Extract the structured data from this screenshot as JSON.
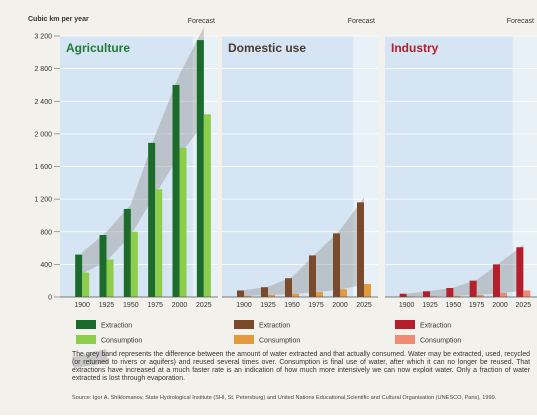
{
  "chart_data": [
    {
      "type": "bar",
      "title": "Agriculture",
      "title_color": "#1f7a34",
      "forecast_label": "Forecast",
      "categories": [
        "1900",
        "1925",
        "1950",
        "1975",
        "2000",
        "2025"
      ],
      "series": [
        {
          "name": "Extraction",
          "color": "#1b6b2a",
          "values": [
            520,
            760,
            1080,
            1890,
            2600,
            3150
          ]
        },
        {
          "name": "Consumption",
          "color": "#8ccd4a",
          "values": [
            300,
            460,
            800,
            1320,
            1830,
            2240
          ]
        }
      ],
      "ylim": [
        0,
        3200
      ]
    },
    {
      "type": "bar",
      "title": "Domestic use",
      "title_color": "#4a3a30",
      "forecast_label": "Forecast",
      "categories": [
        "1900",
        "1925",
        "1950",
        "1975",
        "2000",
        "2025"
      ],
      "series": [
        {
          "name": "Extraction",
          "color": "#7a4a2a",
          "values": [
            80,
            120,
            230,
            510,
            780,
            1160
          ]
        },
        {
          "name": "Consumption",
          "color": "#e39a3c",
          "values": [
            15,
            25,
            40,
            60,
            95,
            160
          ]
        }
      ],
      "ylim": [
        0,
        3200
      ]
    },
    {
      "type": "bar",
      "title": "Industry",
      "title_color": "#b51e2a",
      "forecast_label": "Forecast",
      "categories": [
        "1900",
        "1925",
        "1950",
        "1975",
        "2000",
        "2025"
      ],
      "series": [
        {
          "name": "Extraction",
          "color": "#b51e2a",
          "values": [
            40,
            70,
            110,
            200,
            400,
            610
          ]
        },
        {
          "name": "Consumption",
          "color": "#f08b72",
          "values": [
            8,
            10,
            15,
            25,
            50,
            80
          ]
        }
      ],
      "ylim": [
        0,
        3200
      ]
    }
  ],
  "axis": {
    "ylabel": "Cubic km per year",
    "yticks": [
      "3 200",
      "2 800",
      "2 400",
      "2 000",
      "1 600",
      "1 200",
      "800",
      "400",
      "0"
    ]
  },
  "legend": {
    "extraction": "Extraction",
    "consumption": "Consumption"
  },
  "note": "The grey band represents the difference between the amount of water extracted and that actually consumed. Water may be extracted, used, recycled (or returned to rivers or aquifers) and reused several times over. Consumption is final use of water, after which it can no longer be reused. That extractions have increased at a much faster rate is an indication of how much more intensively we can now exploit water. Only a fraction of water extracted is lost through evaporation.",
  "source": "Source: Igor A. Shiklomanov, State Hydrological Institute (SHI, St. Petersburg) and United Nations Educational,Scientific and Cultural Organisation (UNESCO, Paris), 1999."
}
